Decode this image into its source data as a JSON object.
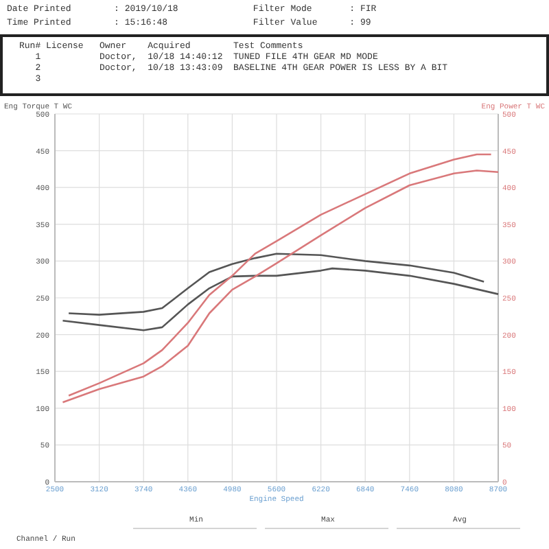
{
  "chart_data": {
    "type": "line",
    "xlabel": "Engine Speed",
    "ylabel": "Eng Torque T WC",
    "y2label": "Eng Power T WC",
    "annotations": [
      "Date Printed        : 2019/10/18              Filter Mode       : FIR",
      "Time Printed        : 15:16:48                Filter Value      : 99",
      "Run# License   Owner    Acquired        Test Comments",
      "   1           Doctor,  10/18 14:40:12  TUNED FILE 4TH GEAR MD MODE",
      "   2           Doctor,  10/18 13:43:09  BASELINE 4TH GEAR POWER IS LESS BY A BIT",
      "   3",
      "Min",
      "Max",
      "Avg",
      "Channel / Run"
    ],
    "xlim": [
      2500,
      8700
    ],
    "xticks": [
      2500,
      3120,
      3740,
      4360,
      4980,
      5600,
      6220,
      6840,
      7460,
      8080,
      8700
    ],
    "ylim": [
      0,
      500
    ],
    "yticks": [
      0,
      50,
      100,
      150,
      200,
      250,
      300,
      350,
      400,
      450,
      500
    ],
    "y2lim": [
      0,
      500
    ],
    "y2ticks": [
      0,
      50,
      100,
      150,
      200,
      250,
      300,
      350,
      400,
      450,
      500
    ],
    "grid": true,
    "line_style": "solid",
    "marker": "none",
    "series": [
      {
        "color": "#555555",
        "x": [
          2693,
          3120,
          3740,
          4000,
          4360,
          4660,
          4980,
          5300,
          5600,
          6220,
          6840,
          7460,
          8080,
          8500
        ],
        "values": [
          229,
          227,
          231,
          236,
          263,
          285,
          296,
          304,
          310,
          308,
          300,
          294,
          284,
          272
        ]
      },
      {
        "color": "#555555",
        "x": [
          2610,
          3120,
          3740,
          4000,
          4360,
          4660,
          4980,
          5300,
          5600,
          6220,
          6380,
          6840,
          7460,
          8080,
          8700
        ],
        "values": [
          219,
          213,
          206,
          210,
          241,
          263,
          279,
          280,
          280,
          287,
          290,
          287,
          280,
          269,
          255
        ]
      },
      {
        "color": "#d9787a",
        "axis": "y2",
        "x": [
          2693,
          3120,
          3740,
          4000,
          4360,
          4660,
          4980,
          5300,
          5600,
          6220,
          6840,
          7460,
          8080,
          8400,
          8600
        ],
        "values": [
          117,
          134,
          161,
          179,
          216,
          254,
          280,
          310,
          327,
          363,
          391,
          419,
          438,
          445,
          445
        ]
      },
      {
        "color": "#d9787a",
        "axis": "y2",
        "x": [
          2610,
          3120,
          3740,
          4000,
          4360,
          4660,
          4980,
          5300,
          5600,
          6220,
          6840,
          7460,
          8080,
          8400,
          8700
        ],
        "values": [
          108,
          126,
          143,
          157,
          185,
          229,
          261,
          279,
          297,
          335,
          372,
          403,
          419,
          423,
          421
        ]
      }
    ]
  }
}
